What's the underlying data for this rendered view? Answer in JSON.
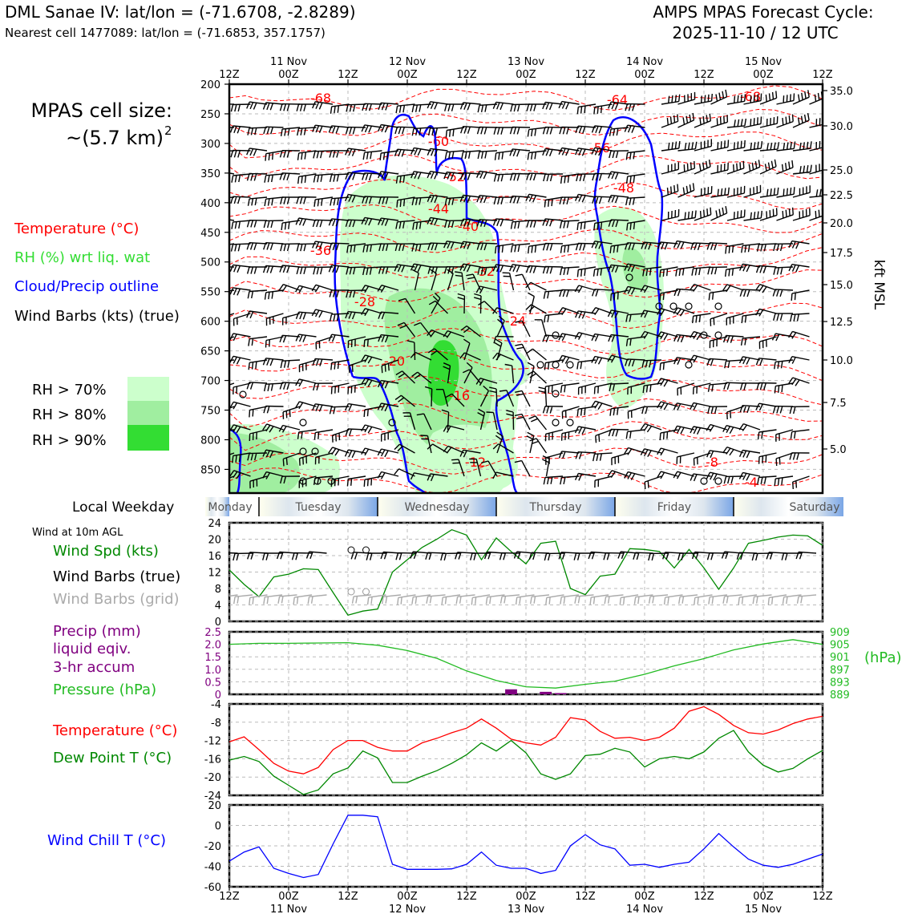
{
  "header": {
    "title_left": "DML Sanae IV: lat/lon = (-71.6708, -2.8289)",
    "subtitle_left": "Nearest cell 1477089: lat/lon = (-71.6853, 357.1757)",
    "title_right_1": "AMPS MPAS Forecast Cycle:",
    "title_right_2": "2025-11-10 / 12 UTC"
  },
  "legend": {
    "cell_size_1": "MPAS cell size:",
    "cell_size_2": "~(5.7 km)",
    "cell_size_sup": "2",
    "temperature": "Temperature (°C)",
    "rh": "RH (%) wrt liq. wat",
    "cloud": "Cloud/Precip outline",
    "barbs": "Wind Barbs (kts) (true)",
    "rh70": "RH > 70%",
    "rh80": "RH > 80%",
    "rh90": "RH > 90%",
    "local_weekday": "Local Weekday",
    "wind_10m": "Wind at 10m AGL",
    "wind_spd": "Wind Spd (kts)",
    "wind_barbs_true": "Wind Barbs (true)",
    "wind_barbs_grid": "Wind Barbs (grid)",
    "precip_1": "Precip (mm)",
    "precip_2": "liquid eqiv.",
    "precip_3": "3-hr accum",
    "pressure": "Pressure (hPa)",
    "pressure_unit": "(hPa)",
    "temp2": "Temperature (°C)",
    "dewpoint": "Dew Point T (°C)",
    "windchill": "Wind Chill T (°C)",
    "kft": "kft MSL"
  },
  "colors": {
    "temperature": "#ff0000",
    "rh_label": "#33dd33",
    "cloud": "#0000ff",
    "rh70": "#ccffcc",
    "rh80": "#a0eea0",
    "rh90": "#33dd33",
    "wind_spd": "#008800",
    "pressure": "#22bb22",
    "precip": "#800080",
    "dewpoint": "#008800",
    "windchill": "#0000ff",
    "grid_barbs": "#aaaaaa"
  },
  "chart_data": [
    {
      "type": "heatmap",
      "name": "cross-section",
      "x_ticks_top": [
        "12Z",
        "00Z",
        "12Z",
        "00Z",
        "12Z",
        "00Z",
        "12Z",
        "00Z",
        "12Z",
        "00Z",
        "12Z"
      ],
      "x_dates": [
        "11 Nov",
        "12 Nov",
        "13 Nov",
        "14 Nov",
        "15 Nov"
      ],
      "y_ticks": [
        "200",
        "250",
        "300",
        "350",
        "400",
        "450",
        "500",
        "550",
        "600",
        "650",
        "700",
        "750",
        "800",
        "850"
      ],
      "ylim": [
        890,
        200
      ],
      "kft_ticks": [
        "35.0",
        "30.0",
        "25.0",
        "22.5",
        "20.0",
        "17.5",
        "15.0",
        "12.5",
        "10.0",
        "7.5",
        "5.0"
      ],
      "temperature_labels": [
        "-68",
        "-64",
        "-68",
        "-60",
        "-56",
        "-52",
        "-48",
        "-44",
        "-40",
        "-36",
        "-32",
        "-28",
        "-24",
        "-20",
        "-16",
        "-12",
        "-8",
        "-4"
      ],
      "series": [
        {
          "name": "Temperature (°C)"
        },
        {
          "name": "RH (%) wrt liq. wat"
        },
        {
          "name": "Cloud/Precip outline"
        },
        {
          "name": "Wind Barbs (kts) (true)"
        }
      ]
    },
    {
      "type": "bar",
      "name": "weekday",
      "categories": [
        "Monday",
        "Tuesday",
        "Wednesday",
        "Thursday",
        "Friday",
        "Saturday"
      ]
    },
    {
      "type": "line",
      "name": "wind speed",
      "x_hours": [
        0,
        3,
        6,
        9,
        12,
        15,
        18,
        21,
        24,
        27,
        30,
        33,
        36,
        39,
        42,
        45,
        48,
        51,
        54,
        57,
        60,
        63,
        66,
        69,
        72,
        75,
        78,
        81,
        84,
        87,
        90,
        93,
        96,
        99,
        102,
        105,
        108,
        111,
        114,
        117,
        120
      ],
      "series": [
        {
          "name": "Wind Spd (kts)",
          "values": [
            12.5,
            9,
            6,
            10.8,
            11.5,
            12.8,
            12.6,
            7,
            1.5,
            2.5,
            3,
            12,
            15,
            18,
            20,
            22.3,
            21,
            15,
            20.3,
            17,
            14,
            19,
            19.5,
            8,
            6.5,
            11,
            11.5,
            17.7,
            17.5,
            17,
            13,
            17.5,
            13,
            7.8,
            13,
            19,
            19.7,
            20.5,
            21,
            20.8,
            18.5
          ]
        }
      ],
      "y_ticks": [
        "0",
        "4",
        "8",
        "12",
        "16",
        "20",
        "24"
      ],
      "ylim": [
        0,
        24
      ]
    },
    {
      "type": "line",
      "name": "precip and pressure",
      "precip_ticks": [
        "0",
        "0.5",
        "1.0",
        "1.5",
        "2.0",
        "2.5"
      ],
      "pressure_ticks": [
        "889",
        "893",
        "897",
        "901",
        "905",
        "909"
      ],
      "ylim_precip": [
        0,
        2.5
      ],
      "ylim_pressure": [
        889,
        909
      ],
      "precip_bars": [
        {
          "x": 57,
          "value": 0.2
        },
        {
          "x": 64,
          "value": 0.1
        },
        {
          "x": 67,
          "value": 0.05
        }
      ],
      "series": [
        {
          "name": "Pressure (hPa)",
          "x_hours": [
            0,
            6,
            12,
            18,
            24,
            30,
            36,
            42,
            48,
            54,
            60,
            66,
            72,
            78,
            84,
            90,
            96,
            102,
            108,
            114,
            120
          ],
          "values": [
            905,
            905.3,
            905.3,
            905.4,
            905.5,
            904.7,
            903,
            900.5,
            896.5,
            893.4,
            891.4,
            891.0,
            892.2,
            893.2,
            895.4,
            898.1,
            900.4,
            903.2,
            905.1,
            906.5,
            905
          ]
        }
      ]
    },
    {
      "type": "line",
      "name": "temperature and dew point",
      "y_ticks": [
        "-24",
        "-20",
        "-16",
        "-12",
        "-8",
        "-4"
      ],
      "ylim": [
        -24,
        -4
      ],
      "x_hours": [
        0,
        3,
        6,
        9,
        12,
        15,
        18,
        21,
        24,
        27,
        30,
        33,
        36,
        39,
        42,
        45,
        48,
        51,
        54,
        57,
        60,
        63,
        66,
        69,
        72,
        75,
        78,
        81,
        84,
        87,
        90,
        93,
        96,
        99,
        102,
        105,
        108,
        111,
        114,
        117,
        120
      ],
      "series": [
        {
          "name": "Temperature (°C)",
          "values": [
            -12.3,
            -11.2,
            -14,
            -17,
            -18.7,
            -19.3,
            -17.9,
            -14,
            -12,
            -12,
            -13.5,
            -14.3,
            -14.3,
            -12.5,
            -11.5,
            -10.3,
            -9.3,
            -7.3,
            -9.3,
            -11.7,
            -12.5,
            -13,
            -11.3,
            -7,
            -7.5,
            -10,
            -11.5,
            -11.3,
            -12,
            -11.3,
            -9.3,
            -5.6,
            -4.6,
            -6.3,
            -8.7,
            -10.3,
            -10.6,
            -9.7,
            -8.3,
            -7.3,
            -6.7
          ]
        },
        {
          "name": "Dew Point T (°C)",
          "values": [
            -16.3,
            -15.5,
            -16.6,
            -19.8,
            -21.8,
            -23.8,
            -22.8,
            -19.3,
            -18,
            -14.3,
            -15.8,
            -21.2,
            -21.2,
            -19.8,
            -18.6,
            -17,
            -15.1,
            -12.5,
            -14.3,
            -12,
            -14.7,
            -19.3,
            -20.5,
            -19.3,
            -15.3,
            -15,
            -13.7,
            -14.5,
            -17.8,
            -16,
            -15.5,
            -16,
            -14.5,
            -11.5,
            -9.8,
            -14.5,
            -17.4,
            -18.9,
            -18.1,
            -16,
            -14.2
          ]
        }
      ]
    },
    {
      "type": "line",
      "name": "wind chill",
      "y_ticks": [
        "-60",
        "-40",
        "-20",
        "0",
        "20"
      ],
      "ylim": [
        -60,
        20
      ],
      "x_hours": [
        0,
        3,
        6,
        9,
        12,
        15,
        18,
        21,
        24,
        27,
        30,
        33,
        36,
        39,
        42,
        45,
        48,
        51,
        54,
        57,
        60,
        63,
        66,
        69,
        72,
        75,
        78,
        81,
        84,
        87,
        90,
        93,
        96,
        99,
        102,
        105,
        108,
        111,
        114,
        117,
        120
      ],
      "series": [
        {
          "name": "Wind Chill T (°C)",
          "values": [
            -35,
            -26,
            -21,
            -42,
            -47,
            -51,
            -48,
            -18,
            10,
            10,
            8.5,
            -38,
            -43,
            -43,
            -43,
            -42.5,
            -38,
            -26,
            -39,
            -42,
            -42,
            -47,
            -44,
            -20,
            -9,
            -19,
            -23,
            -39,
            -38,
            -41,
            -38,
            -36,
            -23,
            -8,
            -21,
            -33,
            -39,
            -41,
            -38,
            -33,
            -28
          ]
        }
      ]
    }
  ]
}
